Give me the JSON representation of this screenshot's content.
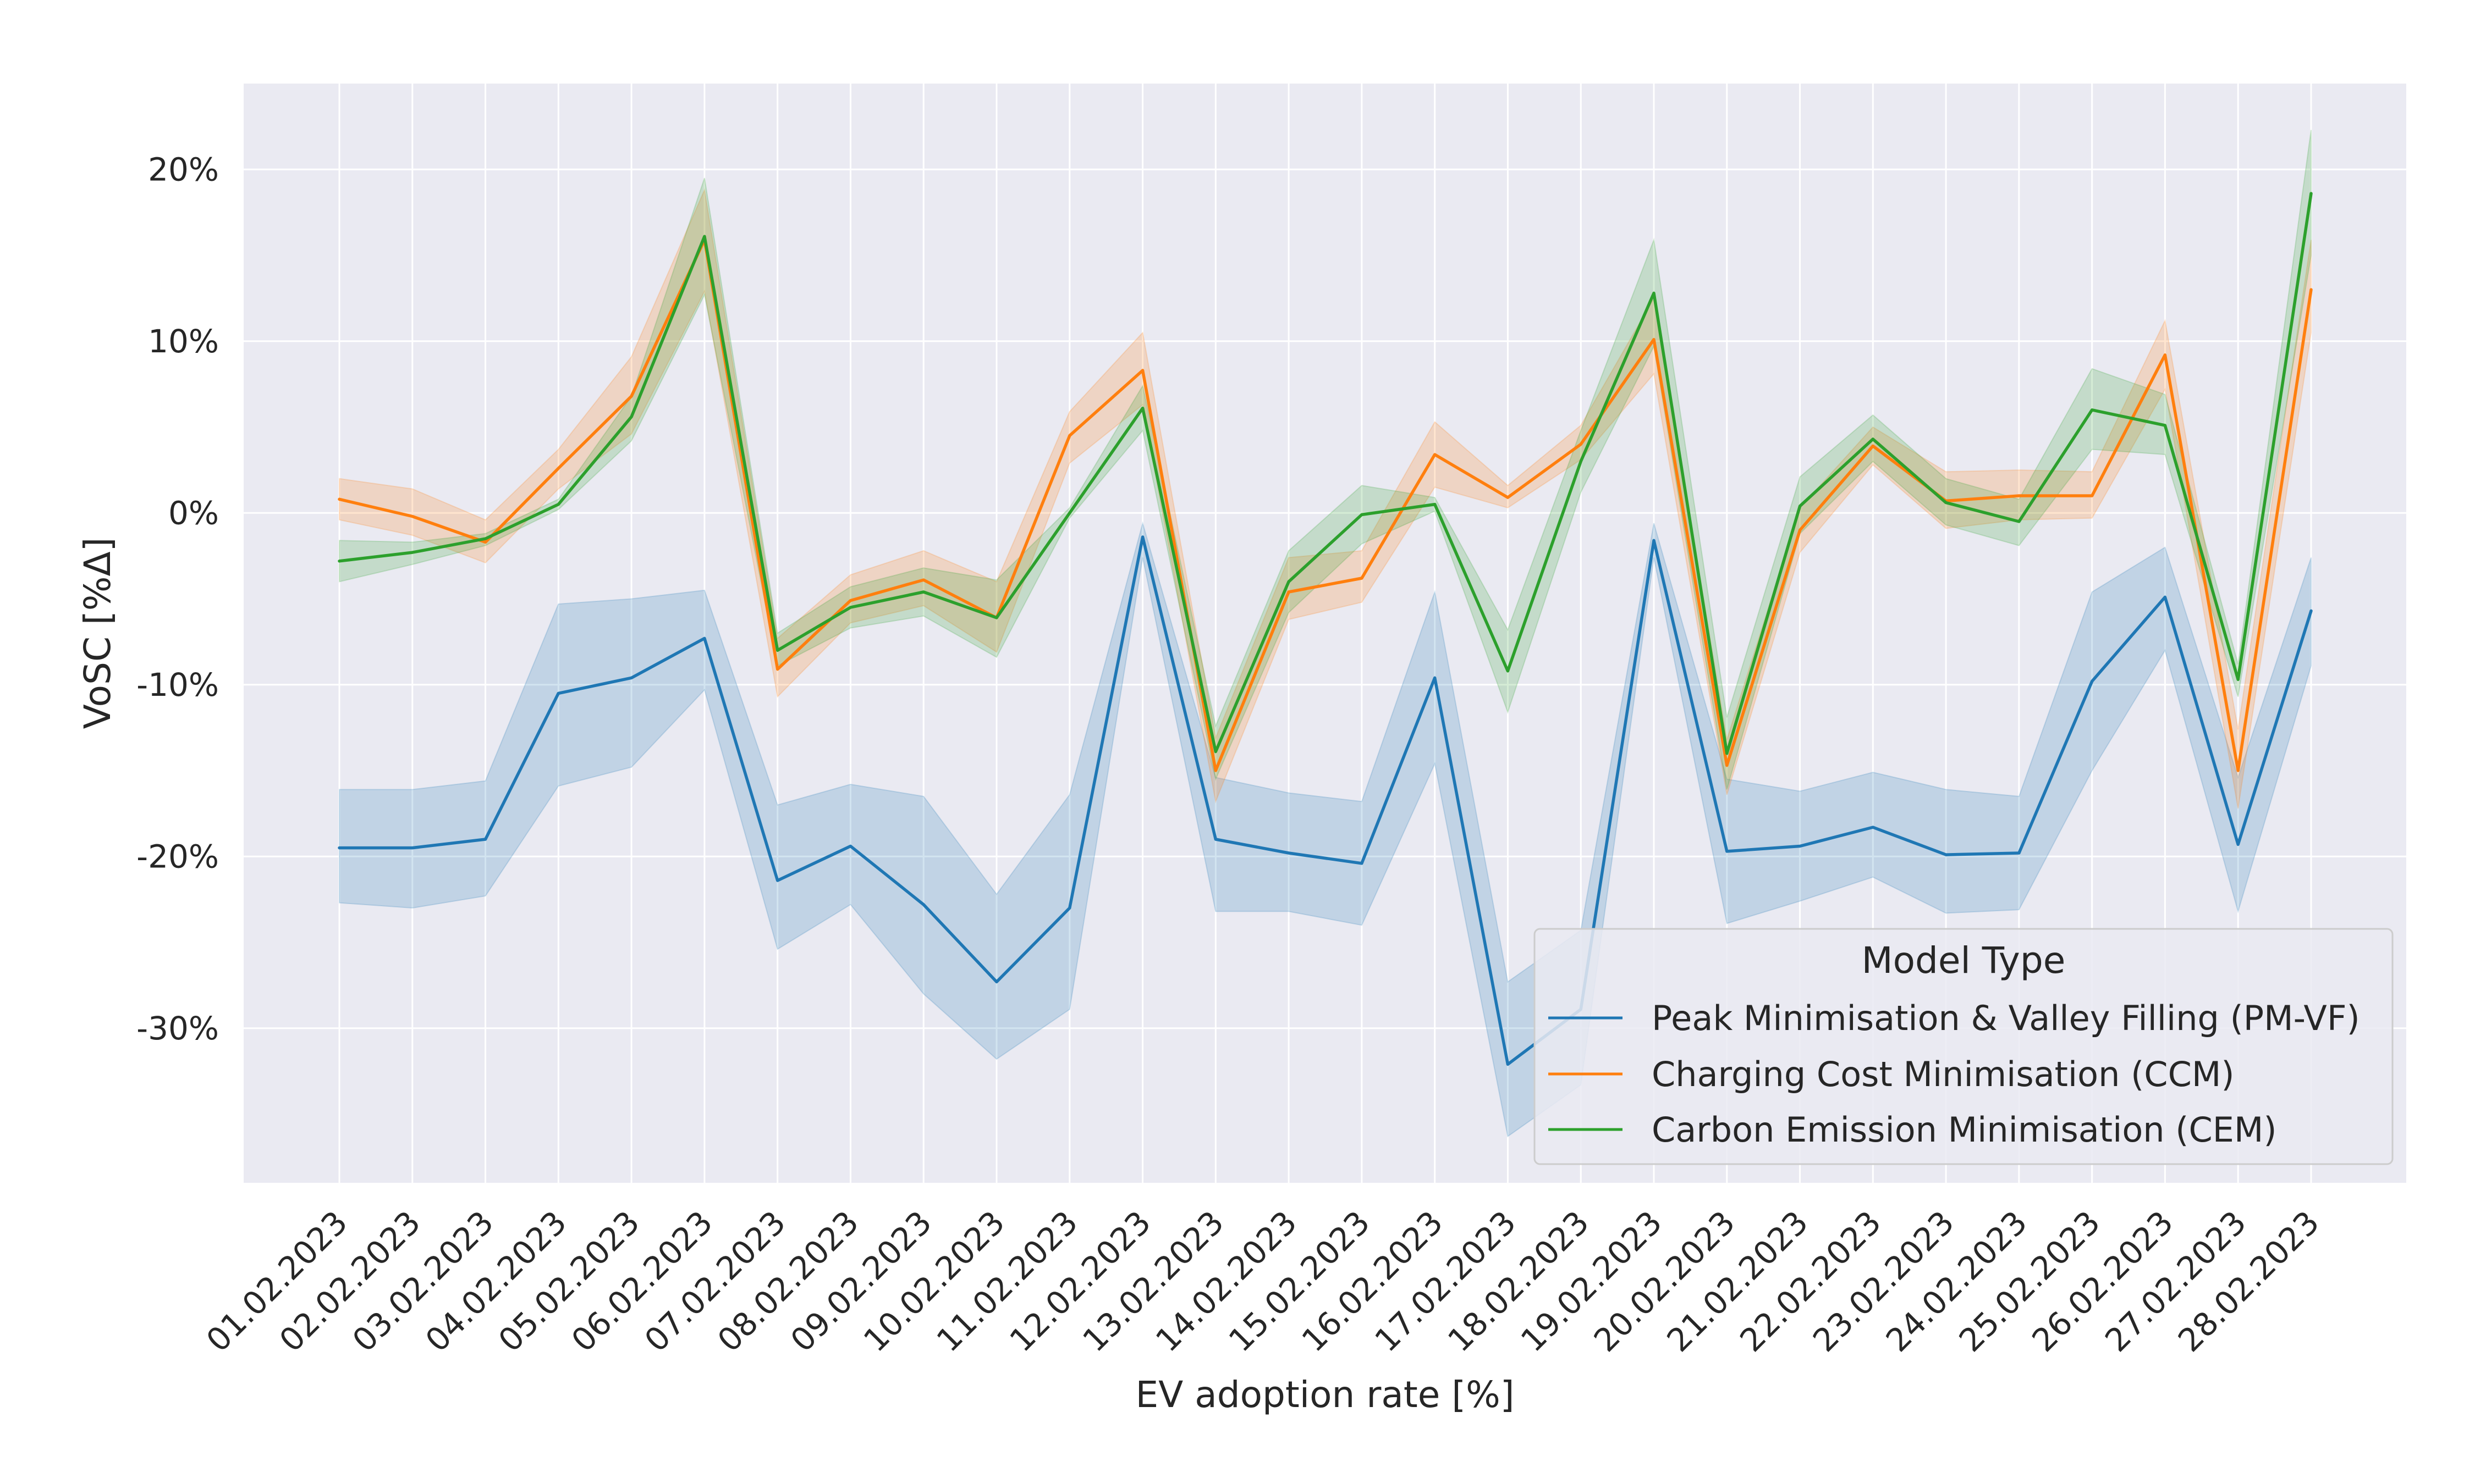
{
  "chart_data": {
    "type": "line",
    "xlabel": "EV adoption rate [%]",
    "ylabel": "VoSC [%Δ]",
    "x": [
      "01.02.2023",
      "02.02.2023",
      "03.02.2023",
      "04.02.2023",
      "05.02.2023",
      "06.02.2023",
      "07.02.2023",
      "08.02.2023",
      "09.02.2023",
      "10.02.2023",
      "11.02.2023",
      "12.02.2023",
      "13.02.2023",
      "14.02.2023",
      "15.02.2023",
      "16.02.2023",
      "17.02.2023",
      "18.02.2023",
      "19.02.2023",
      "20.02.2023",
      "21.02.2023",
      "22.02.2023",
      "23.02.2023",
      "24.02.2023",
      "25.02.2023",
      "26.02.2023",
      "27.02.2023",
      "28.02.2023"
    ],
    "ylim": [
      -39,
      25
    ],
    "yticks": [
      20,
      10,
      0,
      -10,
      -20,
      -30
    ],
    "ytick_labels": [
      "20%",
      "10%",
      "0%",
      "-10%",
      "-20%",
      "-30%"
    ],
    "grid": true,
    "legend_title": "Model Type",
    "legend_position": "lower-right",
    "series": [
      {
        "name": "Peak Minimisation & Valley Filling (PM-VF)",
        "color": "#1f77b4",
        "values": [
          -19.5,
          -19.5,
          -19.0,
          -10.5,
          -9.6,
          -7.3,
          -21.4,
          -19.4,
          -22.8,
          -27.3,
          -23.0,
          -1.4,
          -19.0,
          -19.8,
          -20.4,
          -9.6,
          -32.1,
          -28.9,
          -1.6,
          -19.7,
          -19.4,
          -18.3,
          -19.9,
          -19.8,
          -9.8,
          -4.9,
          -19.3,
          -5.7
        ],
        "lower": [
          -22.7,
          -23.0,
          -22.3,
          -15.9,
          -14.8,
          -10.3,
          -25.4,
          -22.8,
          -28.0,
          -31.8,
          -28.9,
          -2.6,
          -23.2,
          -23.2,
          -24.0,
          -14.6,
          -36.3,
          -33.3,
          -2.6,
          -23.9,
          -22.6,
          -21.2,
          -23.3,
          -23.1,
          -15.0,
          -8.0,
          -23.2,
          -8.9
        ],
        "upper": [
          -16.1,
          -16.1,
          -15.6,
          -5.3,
          -5.0,
          -4.5,
          -17.0,
          -15.8,
          -16.5,
          -22.2,
          -16.4,
          -0.6,
          -15.4,
          -16.3,
          -16.8,
          -4.6,
          -27.3,
          -24.3,
          -0.6,
          -15.5,
          -16.2,
          -15.1,
          -16.1,
          -16.5,
          -4.6,
          -2.0,
          -15.4,
          -2.6
        ]
      },
      {
        "name": "Charging Cost Minimisation (CCM)",
        "color": "#ff7f0e",
        "values": [
          0.8,
          -0.2,
          -1.7,
          2.6,
          6.8,
          15.9,
          -9.1,
          -5.1,
          -3.9,
          -6.1,
          4.5,
          8.3,
          -15.0,
          -4.6,
          -3.8,
          3.4,
          0.9,
          4.0,
          10.1,
          -14.7,
          -1.0,
          3.9,
          0.7,
          1.0,
          1.0,
          9.2,
          -15.0,
          13.0
        ],
        "lower": [
          -0.4,
          -1.3,
          -2.9,
          1.4,
          4.6,
          12.9,
          -10.7,
          -6.4,
          -5.4,
          -8.1,
          2.9,
          6.3,
          -16.8,
          -6.2,
          -5.2,
          1.5,
          0.3,
          3.1,
          8.1,
          -16.4,
          -2.3,
          2.8,
          -0.9,
          -0.4,
          -0.3,
          7.2,
          -17.2,
          10.5
        ],
        "upper": [
          2.0,
          1.4,
          -0.4,
          3.7,
          9.1,
          18.8,
          -7.3,
          -3.6,
          -2.2,
          -4.0,
          5.9,
          10.5,
          -13.1,
          -2.6,
          -2.2,
          5.3,
          1.6,
          5.1,
          12.5,
          -13.2,
          0.3,
          5.0,
          2.4,
          2.5,
          2.4,
          11.2,
          -12.6,
          15.9
        ]
      },
      {
        "name": "Carbon Emission Minimisation (CEM)",
        "color": "#2ca02c",
        "values": [
          -2.8,
          -2.3,
          -1.5,
          0.5,
          5.6,
          16.1,
          -8.0,
          -5.5,
          -4.6,
          -6.1,
          0.0,
          6.1,
          -13.9,
          -4.0,
          -0.1,
          0.5,
          -9.2,
          3.0,
          12.8,
          -14.0,
          0.4,
          4.3,
          0.6,
          -0.5,
          6.0,
          5.1,
          -9.7,
          18.6
        ],
        "lower": [
          -4.0,
          -3.0,
          -1.9,
          0.2,
          4.2,
          12.7,
          -8.9,
          -6.7,
          -6.0,
          -8.4,
          -0.3,
          4.8,
          -15.5,
          -5.8,
          -1.8,
          0.1,
          -11.6,
          1.2,
          9.7,
          -16.1,
          -1.2,
          3.0,
          -0.7,
          -1.9,
          3.7,
          3.4,
          -10.7,
          15.0
        ],
        "upper": [
          -1.6,
          -1.7,
          -1.2,
          0.8,
          6.8,
          19.5,
          -7.0,
          -4.3,
          -3.2,
          -3.9,
          0.3,
          7.4,
          -12.4,
          -2.2,
          1.6,
          0.9,
          -6.8,
          4.8,
          15.9,
          -11.9,
          2.1,
          5.7,
          2.0,
          0.8,
          8.4,
          6.9,
          -8.8,
          22.3
        ]
      }
    ]
  }
}
